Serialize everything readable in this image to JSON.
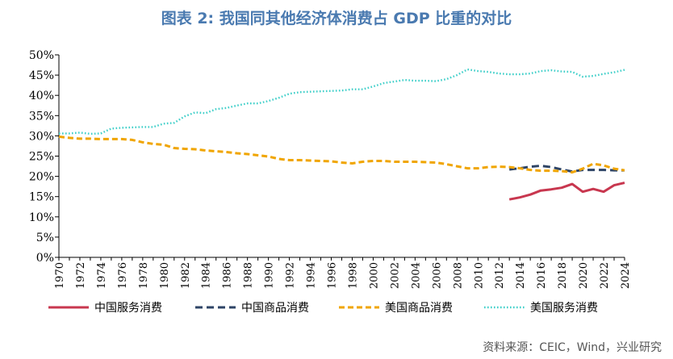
{
  "title": "图表 2:  我国同其他经济体消费占 GDP 比重的对比",
  "source": "资料来源：CEIC，Wind，兴业研究",
  "chart_data": {
    "type": "line",
    "ylim": [
      0,
      50
    ],
    "yticks": [
      "0%",
      "5%",
      "10%",
      "15%",
      "20%",
      "25%",
      "30%",
      "35%",
      "40%",
      "45%",
      "50%"
    ],
    "xlim": [
      1970,
      2024
    ],
    "xticks": [
      "1970",
      "1972",
      "1974",
      "1976",
      "1978",
      "1980",
      "1982",
      "1984",
      "1986",
      "1988",
      "1990",
      "1992",
      "1994",
      "1996",
      "1998",
      "2000",
      "2002",
      "2004",
      "2006",
      "2008",
      "2010",
      "2012",
      "2014",
      "2016",
      "2018",
      "2020",
      "2022",
      "2024"
    ],
    "legend_position": "bottom",
    "series": [
      {
        "name": "中国服务消费",
        "color": "#c8374f",
        "dash": "solid",
        "x": [
          2013,
          2014,
          2015,
          2016,
          2017,
          2018,
          2019,
          2020,
          2021,
          2022,
          2023,
          2024
        ],
        "values": [
          14.3,
          14.8,
          15.5,
          16.5,
          16.8,
          17.2,
          18.1,
          16.2,
          16.9,
          16.2,
          17.8,
          18.4
        ]
      },
      {
        "name": "中国商品消费",
        "color": "#2e4466",
        "dash": "long",
        "x": [
          2013,
          2014,
          2015,
          2016,
          2017,
          2018,
          2019,
          2020,
          2021,
          2022,
          2023,
          2024
        ],
        "values": [
          21.7,
          22.0,
          22.4,
          22.6,
          22.3,
          21.7,
          21.2,
          21.6,
          21.6,
          21.6,
          21.5,
          21.5
        ]
      },
      {
        "name": "美国商品消费",
        "color": "#f0a500",
        "dash": "medium",
        "x": [
          1970,
          1971,
          1972,
          1973,
          1974,
          1975,
          1976,
          1977,
          1978,
          1979,
          1980,
          1981,
          1982,
          1983,
          1984,
          1985,
          1986,
          1987,
          1988,
          1989,
          1990,
          1991,
          1992,
          1993,
          1994,
          1995,
          1996,
          1997,
          1998,
          1999,
          2000,
          2001,
          2002,
          2003,
          2004,
          2005,
          2006,
          2007,
          2008,
          2009,
          2010,
          2011,
          2012,
          2013,
          2014,
          2015,
          2016,
          2017,
          2018,
          2019,
          2020,
          2021,
          2022,
          2023,
          2024
        ],
        "values": [
          29.8,
          29.5,
          29.3,
          29.3,
          29.2,
          29.2,
          29.2,
          29.0,
          28.4,
          28.0,
          27.8,
          27.0,
          26.8,
          26.7,
          26.4,
          26.2,
          26.0,
          25.7,
          25.5,
          25.2,
          24.9,
          24.3,
          24.0,
          24.0,
          23.9,
          23.8,
          23.7,
          23.4,
          23.2,
          23.6,
          23.8,
          23.8,
          23.6,
          23.6,
          23.6,
          23.5,
          23.4,
          23.0,
          22.5,
          22.0,
          22.0,
          22.3,
          22.4,
          22.3,
          22.0,
          21.6,
          21.4,
          21.4,
          21.3,
          21.0,
          21.9,
          23.1,
          22.7,
          21.9,
          21.5
        ]
      },
      {
        "name": "美国服务消费",
        "color": "#3fcfc9",
        "dash": "dotted",
        "x": [
          1970,
          1971,
          1972,
          1973,
          1974,
          1975,
          1976,
          1977,
          1978,
          1979,
          1980,
          1981,
          1982,
          1983,
          1984,
          1985,
          1986,
          1987,
          1988,
          1989,
          1990,
          1991,
          1992,
          1993,
          1994,
          1995,
          1996,
          1997,
          1998,
          1999,
          2000,
          2001,
          2002,
          2003,
          2004,
          2005,
          2006,
          2007,
          2008,
          2009,
          2010,
          2011,
          2012,
          2013,
          2014,
          2015,
          2016,
          2017,
          2018,
          2019,
          2020,
          2021,
          2022,
          2023,
          2024
        ],
        "values": [
          30.6,
          30.6,
          30.8,
          30.5,
          30.6,
          31.8,
          32.0,
          32.1,
          32.2,
          32.2,
          33.0,
          33.2,
          34.8,
          35.8,
          35.6,
          36.6,
          36.9,
          37.5,
          38.0,
          38.0,
          38.6,
          39.4,
          40.4,
          40.8,
          40.9,
          41.0,
          41.1,
          41.2,
          41.5,
          41.5,
          42.2,
          43.0,
          43.4,
          43.8,
          43.6,
          43.6,
          43.5,
          44.0,
          45.0,
          46.4,
          46.0,
          45.8,
          45.4,
          45.2,
          45.2,
          45.4,
          46.0,
          46.2,
          45.9,
          45.8,
          44.6,
          44.8,
          45.3,
          45.7,
          46.3
        ]
      }
    ]
  }
}
